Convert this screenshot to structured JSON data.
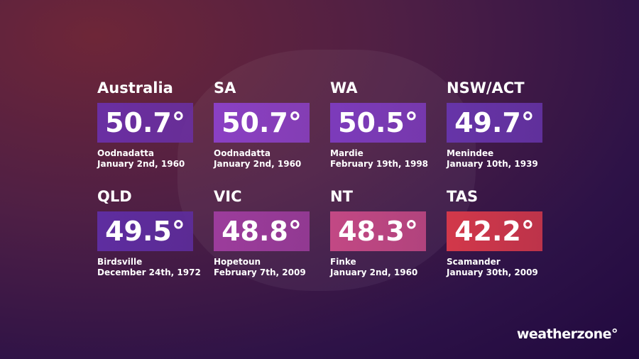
{
  "cards": [
    {
      "region": "Australia",
      "temperature": "50.7°",
      "place": "Oodnadatta",
      "date": "January 2nd, 1960",
      "color": "#6a2fa3"
    },
    {
      "region": "SA",
      "temperature": "50.7°",
      "place": "Oodnadatta",
      "date": "January 2nd, 1960",
      "color": "#8a40c4"
    },
    {
      "region": "WA",
      "temperature": "50.5°",
      "place": "Mardie",
      "date": "February 19th, 1998",
      "color": "#7c3bbb"
    },
    {
      "region": "NSW/ACT",
      "temperature": "49.7°",
      "place": "Menindee",
      "date": "January 10th, 1939",
      "color": "#6634a8"
    },
    {
      "region": "QLD",
      "temperature": "49.5°",
      "place": "Birdsville",
      "date": "December 24th, 1972",
      "color": "#5e2da0"
    },
    {
      "region": "VIC",
      "temperature": "48.8°",
      "place": "Hopetoun",
      "date": "February 7th, 2009",
      "color": "#9c3c9c"
    },
    {
      "region": "NT",
      "temperature": "48.3°",
      "place": "Finke",
      "date": "January 2nd, 1960",
      "color": "#c24884"
    },
    {
      "region": "TAS",
      "temperature": "42.2°",
      "place": "Scamander",
      "date": "January 30th, 2009",
      "color": "#d2384a"
    }
  ],
  "logo": "weatherzone°"
}
